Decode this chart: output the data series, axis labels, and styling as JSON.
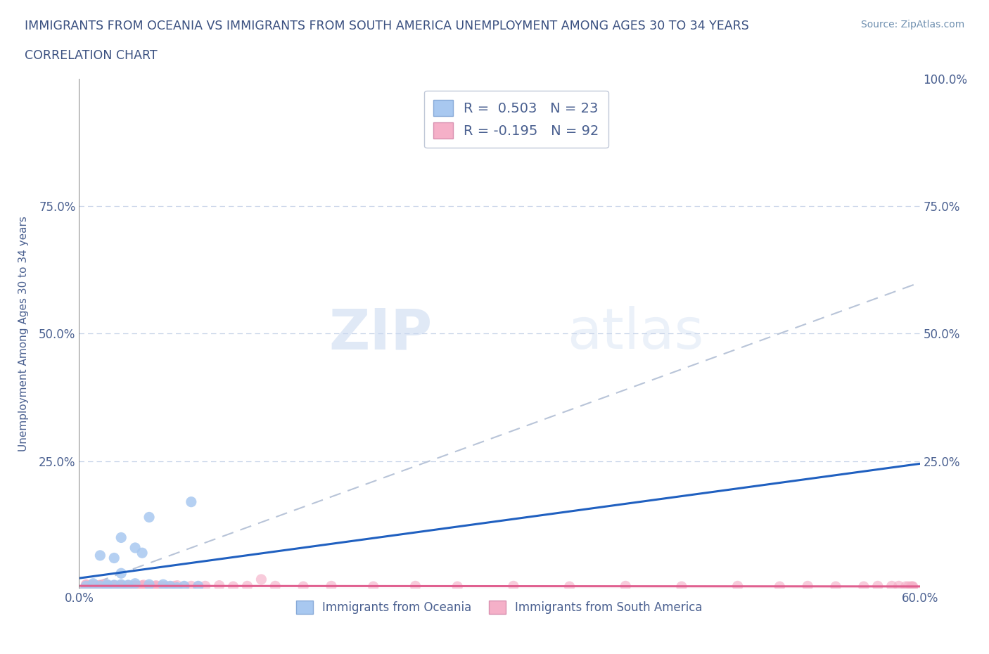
{
  "title_line1": "IMMIGRANTS FROM OCEANIA VS IMMIGRANTS FROM SOUTH AMERICA UNEMPLOYMENT AMONG AGES 30 TO 34 YEARS",
  "title_line2": "CORRELATION CHART",
  "source": "Source: ZipAtlas.com",
  "ylabel": "Unemployment Among Ages 30 to 34 years",
  "xlim": [
    0,
    0.6
  ],
  "ylim": [
    0,
    1.0
  ],
  "r_oceania": 0.503,
  "n_oceania": 23,
  "r_sa": -0.195,
  "n_sa": 92,
  "legend_label_oceania": "Immigrants from Oceania",
  "legend_label_sa": "Immigrants from South America",
  "color_oceania": "#a8c8f0",
  "color_sa": "#f5b0c8",
  "color_oceania_line": "#2060c0",
  "color_sa_line": "#e06090",
  "color_diagonal": "#b8c4d8",
  "watermark_zip": "ZIP",
  "watermark_atlas": "atlas",
  "title_color": "#3a5080",
  "axis_color": "#4a6090",
  "oceania_x": [
    0.005,
    0.01,
    0.015,
    0.015,
    0.02,
    0.02,
    0.025,
    0.025,
    0.03,
    0.03,
    0.03,
    0.035,
    0.04,
    0.04,
    0.045,
    0.05,
    0.05,
    0.06,
    0.065,
    0.07,
    0.075,
    0.08,
    0.085
  ],
  "oceania_y": [
    0.005,
    0.01,
    0.005,
    0.065,
    0.005,
    0.008,
    0.007,
    0.06,
    0.008,
    0.03,
    0.1,
    0.007,
    0.01,
    0.08,
    0.07,
    0.008,
    0.14,
    0.008,
    0.005,
    0.002,
    0.005,
    0.17,
    0.005
  ],
  "sa_x": [
    0.005,
    0.005,
    0.005,
    0.008,
    0.008,
    0.008,
    0.01,
    0.01,
    0.01,
    0.01,
    0.012,
    0.012,
    0.013,
    0.013,
    0.015,
    0.015,
    0.015,
    0.016,
    0.017,
    0.018,
    0.018,
    0.02,
    0.02,
    0.02,
    0.02,
    0.022,
    0.023,
    0.025,
    0.025,
    0.026,
    0.028,
    0.03,
    0.03,
    0.03,
    0.032,
    0.033,
    0.035,
    0.035,
    0.037,
    0.038,
    0.04,
    0.04,
    0.04,
    0.042,
    0.043,
    0.045,
    0.045,
    0.046,
    0.048,
    0.05,
    0.05,
    0.052,
    0.054,
    0.055,
    0.056,
    0.058,
    0.06,
    0.062,
    0.065,
    0.068,
    0.07,
    0.075,
    0.08,
    0.085,
    0.09,
    0.1,
    0.11,
    0.12,
    0.13,
    0.14,
    0.16,
    0.18,
    0.21,
    0.24,
    0.27,
    0.31,
    0.35,
    0.39,
    0.43,
    0.47,
    0.5,
    0.52,
    0.54,
    0.56,
    0.57,
    0.58,
    0.585,
    0.59,
    0.592,
    0.594,
    0.595,
    0.595
  ],
  "sa_y": [
    0.005,
    0.007,
    0.008,
    0.004,
    0.005,
    0.006,
    0.004,
    0.005,
    0.006,
    0.007,
    0.004,
    0.005,
    0.004,
    0.006,
    0.004,
    0.005,
    0.007,
    0.005,
    0.004,
    0.005,
    0.008,
    0.004,
    0.005,
    0.006,
    0.007,
    0.005,
    0.004,
    0.005,
    0.006,
    0.004,
    0.005,
    0.004,
    0.005,
    0.006,
    0.005,
    0.004,
    0.005,
    0.006,
    0.004,
    0.005,
    0.004,
    0.005,
    0.006,
    0.005,
    0.004,
    0.005,
    0.006,
    0.007,
    0.005,
    0.004,
    0.005,
    0.004,
    0.005,
    0.006,
    0.004,
    0.005,
    0.004,
    0.005,
    0.004,
    0.005,
    0.006,
    0.004,
    0.005,
    0.004,
    0.005,
    0.006,
    0.004,
    0.005,
    0.018,
    0.005,
    0.004,
    0.005,
    0.004,
    0.005,
    0.004,
    0.005,
    0.004,
    0.005,
    0.004,
    0.005,
    0.004,
    0.005,
    0.004,
    0.004,
    0.005,
    0.005,
    0.005,
    0.004,
    0.004,
    0.004,
    0.004,
    0.003
  ]
}
